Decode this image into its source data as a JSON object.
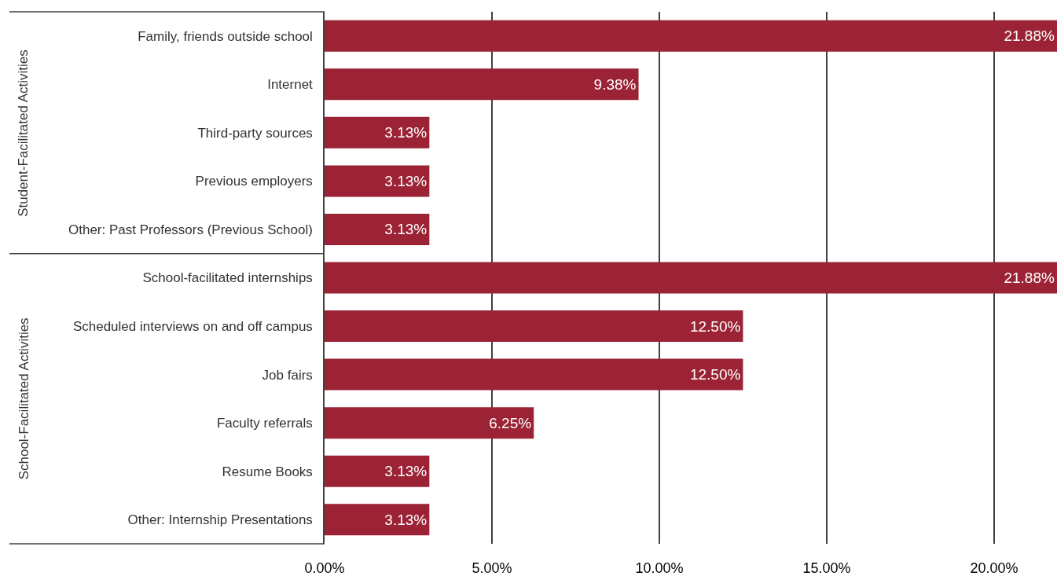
{
  "chart_data": {
    "type": "bar",
    "orientation": "horizontal",
    "categories": [
      "Family, friends outside school",
      "Internet",
      "Third-party sources",
      "Previous employers",
      "Other: Past Professors (Previous School)",
      "School-facilitated internships",
      "Scheduled interviews on and off campus",
      "Job fairs",
      "Faculty referrals",
      "Resume Books",
      "Other: Internship Presentations"
    ],
    "values": [
      21.88,
      9.38,
      3.13,
      3.13,
      3.13,
      21.88,
      12.5,
      12.5,
      6.25,
      3.13,
      3.13
    ],
    "value_labels": [
      "21.88%",
      "9.38%",
      "3.13%",
      "3.13%",
      "3.13%",
      "21.88%",
      "12.50%",
      "12.50%",
      "6.25%",
      "3.13%",
      "3.13%"
    ],
    "color": "#9b2335",
    "xlim": [
      0,
      21.88
    ],
    "xticks": [
      {
        "value": 0,
        "label": "0.00%"
      },
      {
        "value": 5,
        "label": "5.00%"
      },
      {
        "value": 10,
        "label": "10.00%"
      },
      {
        "value": 15,
        "label": "15.00%"
      },
      {
        "value": 20,
        "label": "20.00%"
      }
    ],
    "grid": "x",
    "annotations": [
      "Student-Facilitated Activities",
      "School-Facilitated Activities"
    ]
  }
}
